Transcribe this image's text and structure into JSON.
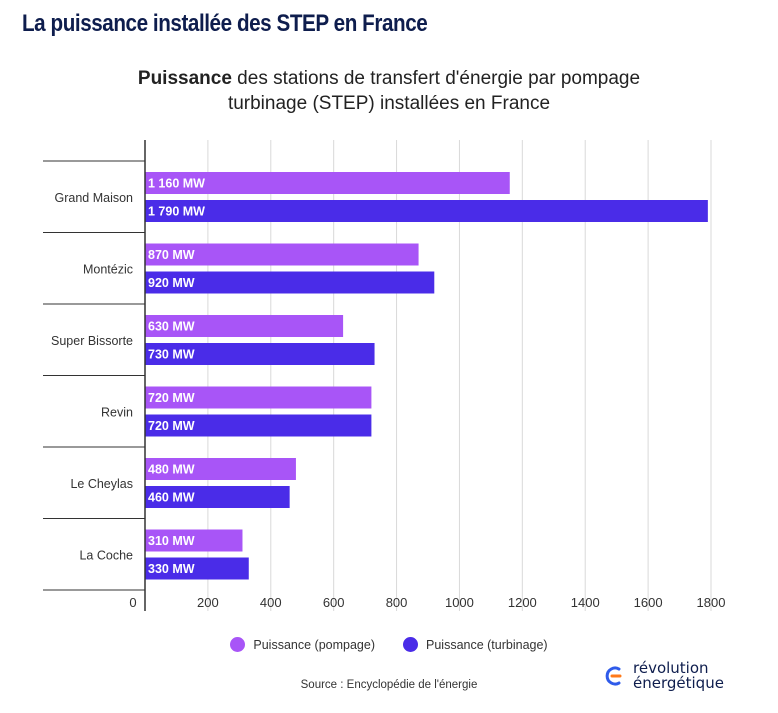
{
  "page": {
    "heading": "La puissance installée des STEP en France",
    "title_bold": "Puissance",
    "title_line1_rest": " des stations de transfert d'énergie par pompage",
    "title_line2": "turbinage (STEP) installées en France",
    "source": "Source : Encyclopédie de l'énergie",
    "logo_line1": "révolution",
    "logo_line2": "énergétique"
  },
  "chart_data": {
    "type": "bar",
    "orientation": "horizontal",
    "title": "Puissance des stations de transfert d'énergie par pompage turbinage (STEP) installées en France",
    "categories": [
      "Grand Maison",
      "Montézic",
      "Super Bissorte",
      "Revin",
      "Le Cheylas",
      "La Coche"
    ],
    "series": [
      {
        "name": "Puissance (pompage)",
        "color": "#a855f7",
        "values": [
          1160,
          870,
          630,
          720,
          480,
          310
        ],
        "labels": [
          "1 160 MW",
          "870 MW",
          "630 MW",
          "720 MW",
          "480 MW",
          "310 MW"
        ]
      },
      {
        "name": "Puissance (turbinage)",
        "color": "#4a2ce8",
        "values": [
          1790,
          920,
          730,
          720,
          460,
          330
        ],
        "labels": [
          "1 790 MW",
          "920 MW",
          "730 MW",
          "720 MW",
          "460 MW",
          "330 MW"
        ]
      }
    ],
    "xlim": [
      0,
      1800
    ],
    "xticks": [
      0,
      200,
      400,
      600,
      800,
      1000,
      1200,
      1400,
      1600,
      1800
    ],
    "xtick_labels": [
      "0",
      "200",
      "400",
      "600",
      "800",
      "1000",
      "1200",
      "1400",
      "1600",
      "1800"
    ],
    "grid": true,
    "legend_position": "bottom"
  }
}
